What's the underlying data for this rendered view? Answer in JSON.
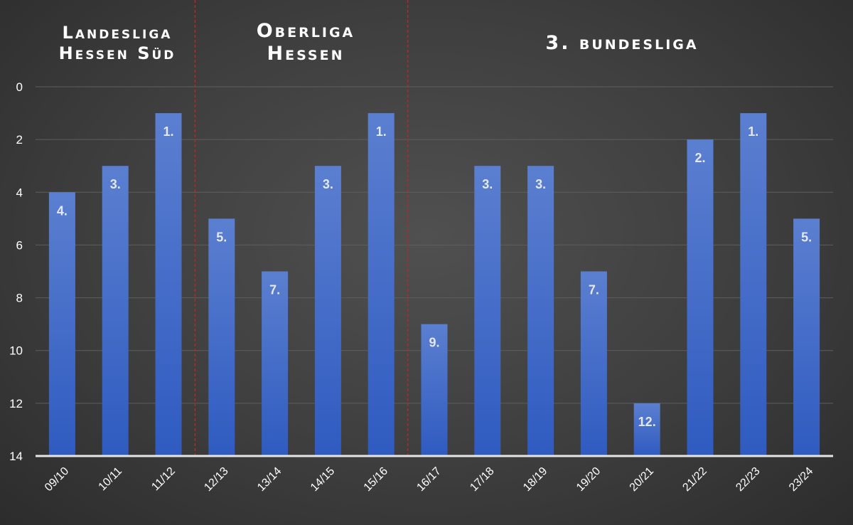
{
  "colors": {
    "bar_top": "#5b7fd0",
    "bar_bottom": "#2f5bc0",
    "divider": "#b42828",
    "grid": "#5e5e5e",
    "axis": "#e6e6e6"
  },
  "sections": [
    {
      "line1": "Landesliga",
      "line2": "Hessen Süd"
    },
    {
      "line1": "Oberliga",
      "line2": "Hessen"
    },
    {
      "line1": "3. bundesliga",
      "line2": ""
    }
  ],
  "chart_data": {
    "type": "bar",
    "categories": [
      "09/10",
      "10/11",
      "11/12",
      "12/13",
      "13/14",
      "14/15",
      "15/16",
      "16/17",
      "17/18",
      "18/19",
      "19/20",
      "20/21",
      "21/22",
      "22/23",
      "23/24"
    ],
    "values": [
      4,
      3,
      1,
      5,
      7,
      3,
      1,
      9,
      3,
      3,
      7,
      12,
      2,
      1,
      5
    ],
    "data_labels": [
      "4.",
      "3.",
      "1.",
      "5.",
      "7.",
      "3.",
      "1.",
      "9.",
      "3.",
      "3.",
      "7.",
      "12.",
      "2.",
      "1.",
      "5."
    ],
    "ylim": [
      0,
      14
    ],
    "y_inverted": true,
    "yticks": [
      "0",
      "2",
      "4",
      "6",
      "8",
      "10",
      "12",
      "14"
    ],
    "grid": true,
    "section_dividers_after_index": [
      2,
      6
    ]
  }
}
